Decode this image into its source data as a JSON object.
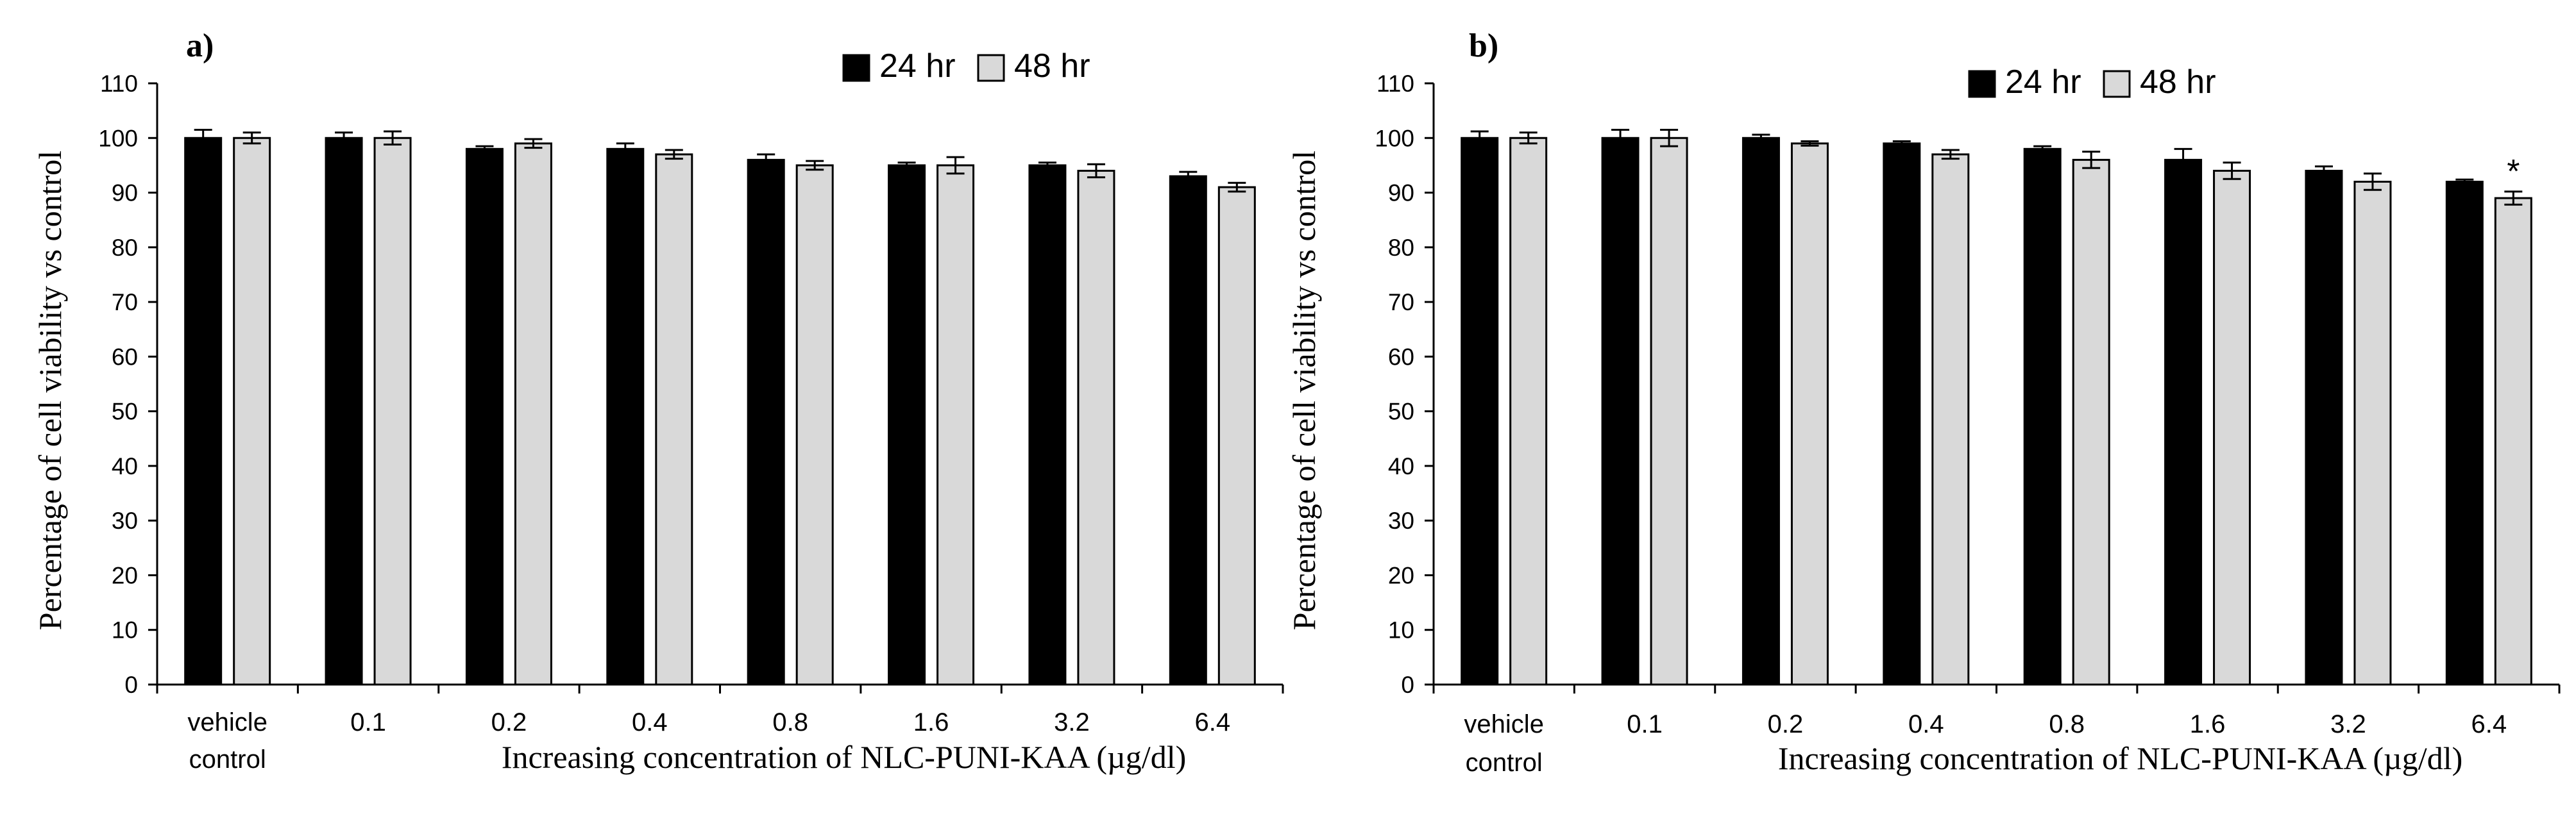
{
  "chart_data": [
    {
      "type": "bar",
      "panel_label": "a)",
      "categories": [
        "vehicle\ncontrol",
        "0.1",
        "0.2",
        "0.4",
        "0.8",
        "1.6",
        "3.2",
        "6.4"
      ],
      "series": [
        {
          "name": "24 hr",
          "color": "#000000",
          "values": [
            100,
            100,
            98,
            98,
            96,
            95,
            95,
            93
          ],
          "errors": [
            1.5,
            1.0,
            0.5,
            1.0,
            1.0,
            0.5,
            0.5,
            0.8
          ]
        },
        {
          "name": "48 hr",
          "color": "#d9d9d9",
          "values": [
            100,
            100,
            99,
            97,
            95,
            95,
            94,
            91
          ],
          "errors": [
            1.0,
            1.2,
            0.8,
            0.8,
            0.8,
            1.5,
            1.2,
            0.8
          ]
        }
      ],
      "annotations": [],
      "xlabel": "Increasing concentration  of NLC-PUNI-KAA  (µg/dl)",
      "ylabel": "Percentage  of cell viability vs control",
      "ylim": [
        0,
        110
      ],
      "yticks": [
        0,
        10,
        20,
        30,
        40,
        50,
        60,
        70,
        80,
        90,
        100,
        110
      ],
      "legend": "top-right",
      "grid": false
    },
    {
      "type": "bar",
      "panel_label": "b)",
      "categories": [
        "vehicle\ncontrol",
        "0.1",
        "0.2",
        "0.4",
        "0.8",
        "1.6",
        "3.2",
        "6.4"
      ],
      "series": [
        {
          "name": "24 hr",
          "color": "#000000",
          "values": [
            100,
            100,
            100,
            99,
            98,
            96,
            94,
            92
          ],
          "errors": [
            1.2,
            1.5,
            0.6,
            0.4,
            0.5,
            2.0,
            0.8,
            0.4
          ]
        },
        {
          "name": "48 hr",
          "color": "#d9d9d9",
          "values": [
            100,
            100,
            99,
            97,
            96,
            94,
            92,
            89
          ],
          "errors": [
            1.0,
            1.5,
            0.4,
            0.8,
            1.5,
            1.5,
            1.5,
            1.2
          ]
        }
      ],
      "annotations": [
        {
          "category": "6.4",
          "series": "48 hr",
          "text": "*"
        }
      ],
      "xlabel": "Increasing concentration  of NLC-PUNI-KAA  (µg/dl)",
      "ylabel": "Percentage  of cell viability vs control",
      "ylim": [
        0,
        110
      ],
      "yticks": [
        0,
        10,
        20,
        30,
        40,
        50,
        60,
        70,
        80,
        90,
        100,
        110
      ],
      "legend": "top-right",
      "grid": false
    }
  ]
}
